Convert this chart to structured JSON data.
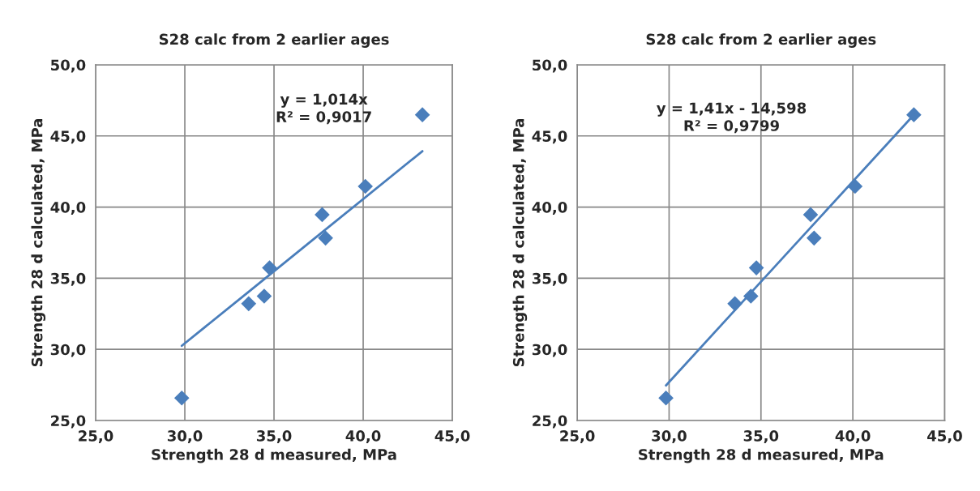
{
  "chart_data": [
    {
      "type": "scatter",
      "title": "S28 calc from 2 earlier ages",
      "xlabel": "Strength 28 d measured, MPa",
      "ylabel": "Strength 28 d calculated, MPa",
      "x": [
        43.32,
        40.12,
        37.7,
        37.89,
        34.75,
        34.45,
        33.58,
        29.83
      ],
      "series": [
        {
          "color": "#4a7ebb",
          "values": [
            46.49,
            41.46,
            39.47,
            37.82,
            35.73,
            33.74,
            33.21,
            26.58
          ],
          "marker": "diamond"
        },
        {
          "type": "line",
          "color": "#4a7ebb",
          "x": [
            29.83,
            33.58,
            37.7,
            43.32
          ],
          "values": [
            30.25,
            34.05,
            38.23,
            43.93
          ],
          "marker": "none"
        }
      ],
      "annotations": [
        "y = 1,014x\nR² = 0,9017"
      ],
      "xlim": [
        25,
        45
      ],
      "ylim": [
        25,
        50
      ],
      "xticks": [
        {
          "value": 25,
          "label": "25,0"
        },
        {
          "value": 30,
          "label": "30,0"
        },
        {
          "value": 35,
          "label": "35,0"
        },
        {
          "value": 40,
          "label": "40,0"
        },
        {
          "value": 45,
          "label": "45,0"
        }
      ],
      "yticks": [
        {
          "value": 25,
          "label": "25,0"
        },
        {
          "value": 30,
          "label": "30,0"
        },
        {
          "value": 35,
          "label": "35,0"
        },
        {
          "value": 40,
          "label": "40,0"
        },
        {
          "value": 45,
          "label": "45,0"
        },
        {
          "value": 50,
          "label": "50,0"
        }
      ],
      "grid": true,
      "legend": false
    },
    {
      "type": "scatter",
      "title": "S28 calc from 2 earlier ages",
      "xlabel": "Strength 28 d measured, MPa",
      "ylabel": "Strength 28 d calculated, MPa",
      "x": [
        43.32,
        40.12,
        37.7,
        37.89,
        34.75,
        34.45,
        33.58,
        29.83
      ],
      "series": [
        {
          "color": "#4a7ebb",
          "values": [
            46.49,
            41.46,
            39.47,
            37.82,
            35.73,
            33.74,
            33.21,
            26.58
          ],
          "marker": "diamond"
        },
        {
          "type": "line",
          "color": "#4a7ebb",
          "x": [
            29.83,
            33.58,
            37.7,
            43.32
          ],
          "values": [
            27.46,
            32.75,
            38.56,
            46.48
          ],
          "marker": "none"
        }
      ],
      "annotations": [
        "y = 1,41x - 14,598\nR² = 0,9799"
      ],
      "xlim": [
        25,
        45
      ],
      "ylim": [
        25,
        50
      ],
      "xticks": [
        {
          "value": 25,
          "label": "25,0"
        },
        {
          "value": 30,
          "label": "30,0"
        },
        {
          "value": 35,
          "label": "35,0"
        },
        {
          "value": 40,
          "label": "40,0"
        },
        {
          "value": 45,
          "label": "45,0"
        }
      ],
      "yticks": [
        {
          "value": 25,
          "label": "25,0"
        },
        {
          "value": 30,
          "label": "30,0"
        },
        {
          "value": 35,
          "label": "35,0"
        },
        {
          "value": 40,
          "label": "40,0"
        },
        {
          "value": 45,
          "label": "45,0"
        },
        {
          "value": 50,
          "label": "50,0"
        }
      ],
      "grid": true,
      "legend": false
    }
  ]
}
